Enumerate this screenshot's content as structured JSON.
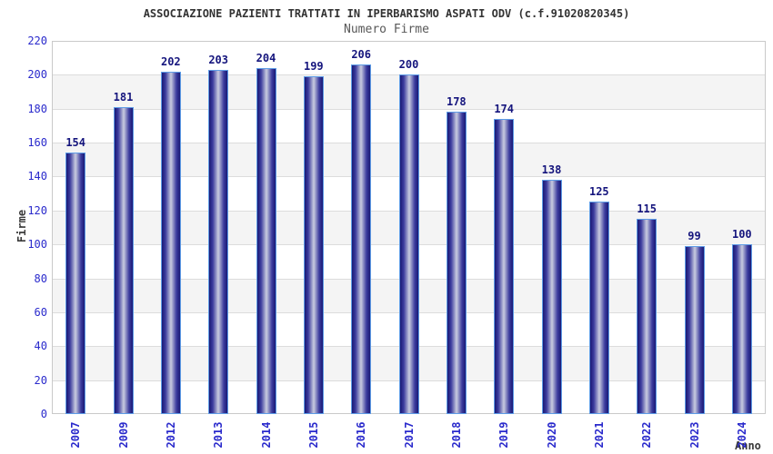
{
  "chart_data": {
    "type": "bar",
    "title": "ASSOCIAZIONE PAZIENTI TRATTATI IN IPERBARISMO ASPATI ODV (c.f.91020820345)",
    "subtitle": "Numero Firme",
    "xlabel": "Anno",
    "ylabel": "Firme",
    "categories": [
      "2007",
      "2009",
      "2012",
      "2013",
      "2014",
      "2015",
      "2016",
      "2017",
      "2018",
      "2019",
      "2020",
      "2021",
      "2022",
      "2023",
      "2024"
    ],
    "values": [
      154,
      181,
      202,
      203,
      204,
      199,
      206,
      200,
      178,
      174,
      138,
      125,
      115,
      99,
      100
    ],
    "ylim": [
      0,
      220
    ],
    "ytick_step": 20,
    "grid": true,
    "legend": "none",
    "band_alternating": true,
    "colors": {
      "tick_label": "#2a2acc",
      "category_label": "#2a2acc",
      "value_label": "#15157d",
      "bar_dark": "#191975",
      "bar_mid": "#3c3c9e",
      "bar_light": "#c9cce0",
      "bar_border": "#5e9ce6",
      "band_gray": "#f4f4f4",
      "grid_line": "#dcdcdc",
      "plot_border": "#c9c9c9",
      "title_color": "#333333",
      "subtitle_color": "#585858",
      "axis_title_color": "#3a3a3a",
      "background": "#ffffff"
    }
  }
}
